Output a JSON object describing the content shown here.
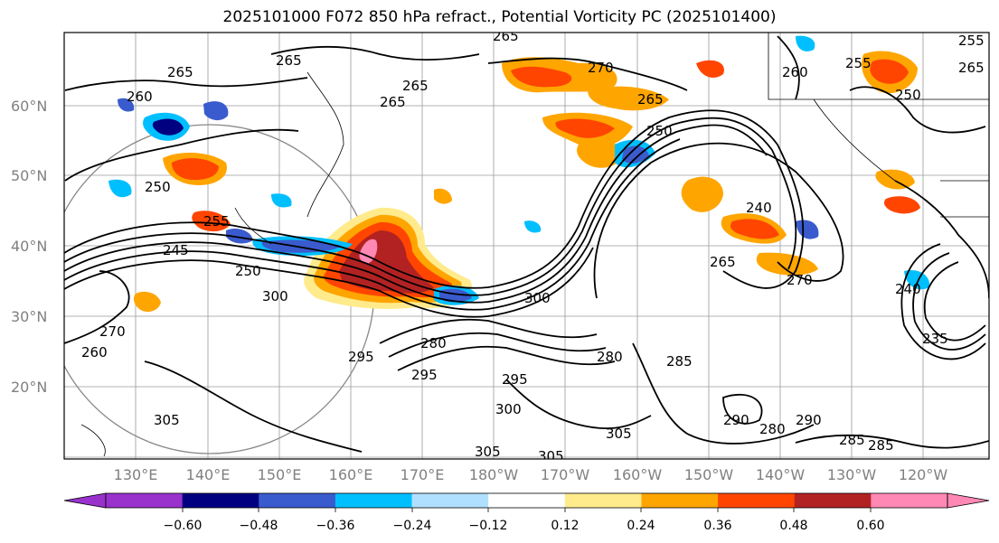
{
  "title": "2025101000 F072 850 hPa refract., Potential Vorticity PC (2025101400)",
  "map": {
    "lat_labels": [
      "60°N",
      "50°N",
      "40°N",
      "30°N",
      "20°N"
    ],
    "lon_labels": [
      "130°E",
      "140°E",
      "150°E",
      "160°E",
      "170°E",
      "180°W",
      "170°W",
      "160°W",
      "150°W",
      "140°W",
      "130°W",
      "120°W"
    ],
    "contour_labels": [
      "265",
      "260",
      "265",
      "265",
      "265",
      "260",
      "255",
      "250",
      "255",
      "265",
      "270",
      "265",
      "250",
      "240",
      "265",
      "270",
      "265",
      "255",
      "250",
      "245",
      "250",
      "300",
      "305",
      "295",
      "285",
      "270",
      "260",
      "280",
      "295",
      "300",
      "295",
      "305",
      "305",
      "305",
      "280",
      "285",
      "290",
      "285",
      "290",
      "280",
      "300",
      "235",
      "240"
    ]
  },
  "colorbar": {
    "colors": [
      "#9932cc",
      "#000080",
      "#3a5bcd",
      "#00bfff",
      "#b0e0ff",
      "#ffffff",
      "#ffeb8c",
      "#ffa500",
      "#ff4500",
      "#b22222",
      "#ff88b4"
    ],
    "tick_labels": [
      "−0.60",
      "−0.48",
      "−0.36",
      "−0.24",
      "−0.12",
      "0.12",
      "0.24",
      "0.36",
      "0.48",
      "0.60"
    ]
  }
}
